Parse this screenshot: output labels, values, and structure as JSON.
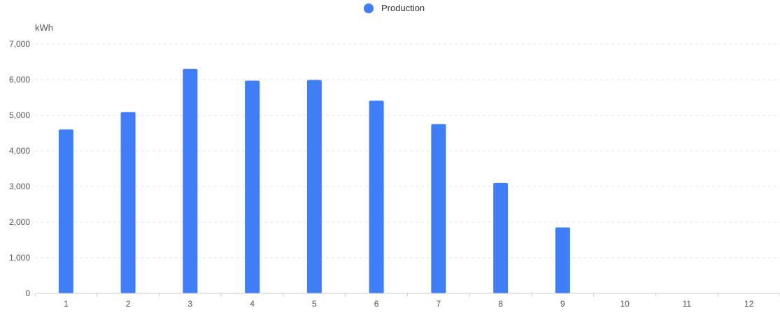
{
  "chart_data": {
    "type": "bar",
    "legend": {
      "label": "Production",
      "position": "top-center"
    },
    "ylabel": "kWh",
    "xlabel": "",
    "categories": [
      "1",
      "2",
      "3",
      "4",
      "5",
      "6",
      "7",
      "8",
      "9",
      "10",
      "11",
      "12"
    ],
    "series": [
      {
        "name": "Production",
        "values": [
          4600,
          5090,
          6300,
          5970,
          5990,
          5410,
          4750,
          3100,
          1850,
          0,
          0,
          0
        ]
      }
    ],
    "ylim": [
      0,
      7000
    ],
    "yticks": [
      0,
      1000,
      2000,
      3000,
      4000,
      5000,
      6000,
      7000
    ],
    "ytick_labels": [
      "0",
      "1,000",
      "2,000",
      "3,000",
      "4,000",
      "5,000",
      "6,000",
      "7,000"
    ],
    "grid": true,
    "colors": {
      "bar": "#3f7ef6",
      "grid": "#e6e6e6",
      "axis": "#cccccc",
      "text": "#555555"
    }
  }
}
